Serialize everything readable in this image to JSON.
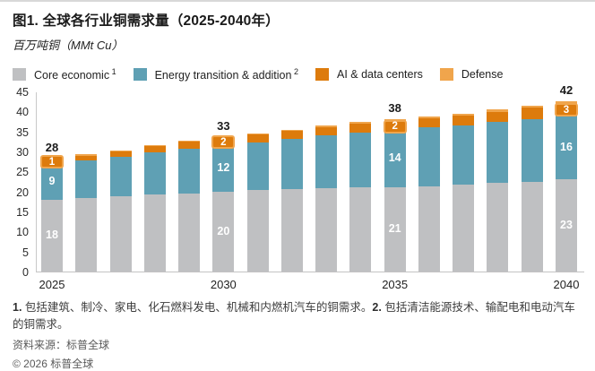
{
  "header": {
    "title": "图1. 全球各行业铜需求量（2025-2040年）",
    "subtitle": "百万吨铜（MMt Cu）"
  },
  "colors": {
    "core": "#bfc0c2",
    "energy": "#5fa0b4",
    "ai": "#dd7b0c",
    "defense": "#f0a54c",
    "axis": "#c9c9c9",
    "text": "#1a1a1a"
  },
  "legend": [
    {
      "label": "Core economic",
      "sup": "1",
      "color": "#bfc0c2"
    },
    {
      "label": "Energy transition & addition",
      "sup": "2",
      "color": "#5fa0b4"
    },
    {
      "label": "AI & data centers",
      "sup": "",
      "color": "#dd7b0c"
    },
    {
      "label": "Defense",
      "sup": "",
      "color": "#f0a54c"
    }
  ],
  "chart_data": {
    "type": "bar",
    "stacked": true,
    "title": "图1. 全球各行业铜需求量（2025-2040年）",
    "ylabel": "百万吨铜（MMt Cu）",
    "ylim": [
      0,
      45
    ],
    "y_ticks": [
      0,
      5,
      10,
      15,
      20,
      25,
      30,
      35,
      40,
      45
    ],
    "grid": false,
    "legend_position": "top",
    "categories": [
      "2025",
      "2026",
      "2027",
      "2028",
      "2029",
      "2030",
      "2031",
      "2032",
      "2033",
      "2034",
      "2035",
      "2036",
      "2037",
      "2038",
      "2039",
      "2040"
    ],
    "x_tick_shown": {
      "0": "2025",
      "5": "2030",
      "10": "2035",
      "15": "2040"
    },
    "series": [
      {
        "name": "Core economic",
        "color": "#bfc0c2",
        "values": [
          18,
          18.5,
          18.8,
          19.2,
          19.6,
          20,
          20.3,
          20.6,
          20.8,
          21,
          21,
          21.3,
          21.7,
          22.1,
          22.5,
          23
        ]
      },
      {
        "name": "Energy transition & addition",
        "color": "#5fa0b4",
        "values": [
          9,
          9.4,
          9.9,
          10.7,
          11.2,
          11.6,
          12.0,
          12.5,
          13.2,
          13.7,
          14.3,
          14.7,
          14.9,
          15.3,
          15.6,
          16
        ]
      },
      {
        "name": "AI & data centers",
        "color": "#dd7b0c",
        "values": [
          1,
          1.1,
          1.3,
          1.4,
          1.6,
          1.7,
          1.9,
          2,
          2.1,
          2.2,
          2.2,
          2.3,
          2.4,
          2.6,
          2.8,
          3
        ]
      },
      {
        "name": "Defense",
        "color": "#f0a54c",
        "values": [
          0.3,
          0.3,
          0.3,
          0.35,
          0.35,
          0.4,
          0.4,
          0.4,
          0.45,
          0.45,
          0.5,
          0.5,
          0.5,
          0.55,
          0.55,
          0.5
        ]
      }
    ],
    "labeled_bars": [
      {
        "index": 0,
        "year": "2025",
        "total": "28",
        "core": "18",
        "energy": "9",
        "ai": "1"
      },
      {
        "index": 5,
        "year": "2030",
        "total": "33",
        "core": "20",
        "energy": "12",
        "ai": "2"
      },
      {
        "index": 10,
        "year": "2035",
        "total": "38",
        "core": "21",
        "energy": "14",
        "ai": "2"
      },
      {
        "index": 15,
        "year": "2040",
        "total": "42",
        "core": "23",
        "energy": "16",
        "ai": "3"
      }
    ]
  },
  "footnotes": {
    "items": [
      {
        "marker": "1.",
        "text": "包括建筑、制冷、家电、化石燃料发电、机械和内燃机汽车的铜需求。"
      },
      {
        "marker": "2.",
        "text": "包括清洁能源技术、输配电和电动汽车的铜需求。"
      }
    ],
    "source": "资料来源：标普全球",
    "copyright": "© 2026 标普全球"
  }
}
